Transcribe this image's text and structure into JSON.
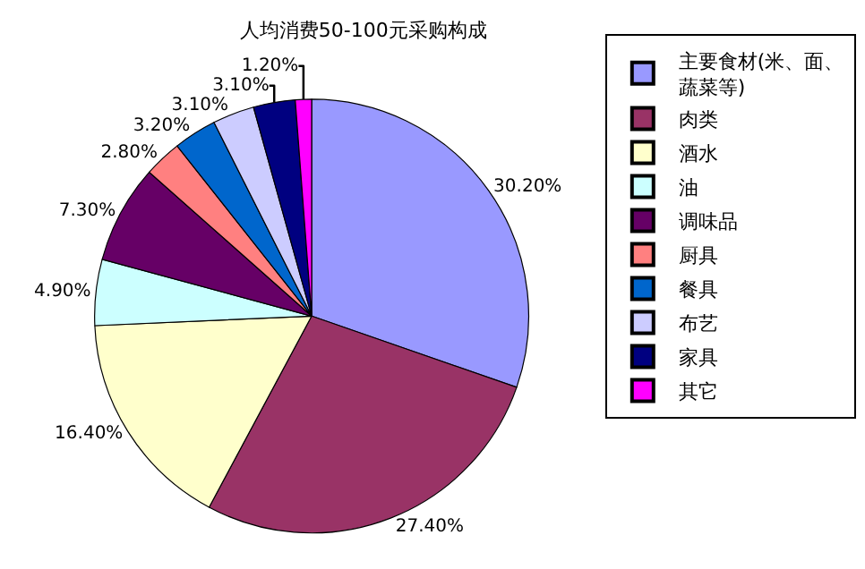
{
  "chart_data": {
    "type": "pie",
    "title": "人均消费50-100元采购构成",
    "categories": [
      "主要食材(米、面、蔬菜等)",
      "肉类",
      "酒水",
      "油",
      "调味品",
      "厨具",
      "餐具",
      "布艺",
      "家具",
      "其它"
    ],
    "values": [
      30.2,
      27.4,
      16.4,
      4.9,
      7.3,
      2.8,
      3.2,
      3.1,
      3.1,
      1.2
    ],
    "value_labels": [
      "30.20%",
      "27.40%",
      "16.40%",
      "4.90%",
      "7.30%",
      "2.80%",
      "3.20%",
      "3.10%",
      "3.10%",
      "1.20%"
    ],
    "colors": [
      "#9999ff",
      "#993366",
      "#ffffcc",
      "#ccffff",
      "#660066",
      "#ff8080",
      "#0066cc",
      "#ccccff",
      "#000080",
      "#ff00ff"
    ],
    "legend": "right"
  }
}
